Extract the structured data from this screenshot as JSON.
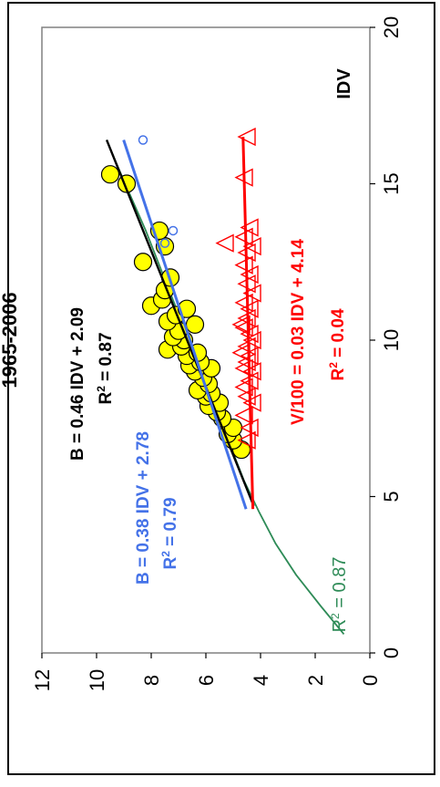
{
  "chart_data": {
    "type": "scatter",
    "rotated": "90deg-clockwise",
    "title": "1965-2006",
    "xlabel": "IDV",
    "ylabel": "",
    "xlim": [
      0,
      20
    ],
    "ylim": [
      0,
      12
    ],
    "xticks": [
      "0",
      "5",
      "10",
      "15",
      "20"
    ],
    "yticks": [
      "0",
      "2",
      "4",
      "6",
      "8",
      "10",
      "12"
    ],
    "grid": false,
    "plot_background": "#ffffff",
    "series": [
      {
        "marker": "filled-circle",
        "color": "#000000",
        "fill": "#ffff00",
        "points": [
          [
            6.5,
            4.7
          ],
          [
            6.8,
            5.0
          ],
          [
            7.0,
            5.2
          ],
          [
            7.2,
            5.0
          ],
          [
            7.5,
            5.4
          ],
          [
            7.7,
            5.6
          ],
          [
            7.9,
            5.9
          ],
          [
            8.0,
            5.5
          ],
          [
            8.2,
            6.0
          ],
          [
            8.3,
            5.8
          ],
          [
            8.4,
            6.3
          ],
          [
            8.6,
            5.9
          ],
          [
            8.8,
            6.1
          ],
          [
            9.0,
            6.4
          ],
          [
            9.1,
            5.8
          ],
          [
            9.2,
            6.6
          ],
          [
            9.3,
            6.2
          ],
          [
            9.5,
            6.7
          ],
          [
            9.6,
            6.3
          ],
          [
            9.7,
            7.4
          ],
          [
            9.8,
            6.9
          ],
          [
            10.0,
            6.8
          ],
          [
            10.1,
            7.2
          ],
          [
            10.3,
            7.0
          ],
          [
            10.5,
            6.4
          ],
          [
            10.6,
            7.4
          ],
          [
            10.8,
            7.1
          ],
          [
            11.0,
            6.7
          ],
          [
            11.1,
            8.0
          ],
          [
            11.3,
            7.6
          ],
          [
            11.6,
            7.5
          ],
          [
            12.0,
            7.3
          ],
          [
            12.5,
            8.3
          ],
          [
            13.0,
            7.5
          ],
          [
            13.5,
            7.7
          ],
          [
            15.0,
            8.9
          ],
          [
            15.3,
            9.5
          ]
        ]
      },
      {
        "marker": "open-circle",
        "color": "#4472e8",
        "points": [
          [
            13.1,
            7.5
          ],
          [
            13.5,
            7.2
          ],
          [
            16.4,
            8.3
          ]
        ]
      },
      {
        "marker": "open-triangle",
        "color": "#ff0000",
        "points": [
          [
            6.8,
            4.5
          ],
          [
            7.2,
            4.4
          ],
          [
            7.6,
            4.6
          ],
          [
            8.0,
            4.3
          ],
          [
            8.2,
            4.5
          ],
          [
            8.5,
            4.6
          ],
          [
            8.7,
            4.4
          ],
          [
            9.0,
            4.3
          ],
          [
            9.1,
            4.6
          ],
          [
            9.3,
            4.5
          ],
          [
            9.5,
            4.4
          ],
          [
            9.6,
            4.7
          ],
          [
            9.8,
            4.5
          ],
          [
            10.0,
            4.3
          ],
          [
            10.2,
            4.4
          ],
          [
            10.4,
            4.6
          ],
          [
            10.5,
            4.7
          ],
          [
            10.7,
            4.5
          ],
          [
            11.0,
            4.4
          ],
          [
            11.2,
            4.6
          ],
          [
            11.5,
            4.3
          ],
          [
            11.8,
            4.5
          ],
          [
            12.1,
            4.4
          ],
          [
            12.4,
            4.6
          ],
          [
            12.8,
            4.5
          ],
          [
            13.0,
            4.3
          ],
          [
            13.1,
            5.3
          ],
          [
            13.3,
            4.6
          ],
          [
            13.6,
            4.4
          ],
          [
            15.2,
            4.6
          ],
          [
            16.5,
            4.5
          ]
        ]
      }
    ],
    "fit_lines": [
      {
        "color": "#000000",
        "x": [
          4.7,
          16.4
        ],
        "y": [
          4.25,
          9.63
        ]
      },
      {
        "color": "#4472e8",
        "x": [
          4.6,
          16.4
        ],
        "y": [
          4.53,
          9.01
        ]
      },
      {
        "color": "#ff0000",
        "x": [
          4.6,
          16.5
        ],
        "y": [
          4.28,
          4.64
        ]
      }
    ],
    "curve": {
      "color": "#2e8b57",
      "x": [
        0.6,
        1.5,
        2.5,
        3.5,
        4.5,
        5.5,
        6.5,
        7.5,
        8.5,
        9.5,
        10.5,
        11.5,
        12.5,
        13.5,
        14.5,
        15.5,
        16.4
      ],
      "y": [
        0.95,
        1.8,
        2.7,
        3.45,
        4.05,
        4.6,
        5.05,
        5.5,
        5.95,
        6.4,
        6.85,
        7.3,
        7.75,
        8.2,
        8.7,
        9.2,
        9.63
      ]
    },
    "annotations": [
      {
        "id": "black-eq",
        "color": "#000000",
        "base": "B = 0.46 IDV + 2.09",
        "r2_label": "R",
        "r2_sup": "2",
        "r2_value": " = 0.87"
      },
      {
        "id": "blue-eq",
        "color": "#4472e8",
        "base": "B = 0.38 IDV + 2.78",
        "r2_label": "R",
        "r2_sup": "2",
        "r2_value": " = 0.79"
      },
      {
        "id": "red-eq",
        "color": "#ff0000",
        "base": "V/100 = 0.03 IDV + 4.14",
        "r2_label": "R",
        "r2_sup": "2",
        "r2_value": " = 0.04"
      },
      {
        "id": "green-r2",
        "color": "#2e8b57",
        "r2_label": "R",
        "r2_sup": "2",
        "r2_value": " = 0.87"
      }
    ]
  }
}
